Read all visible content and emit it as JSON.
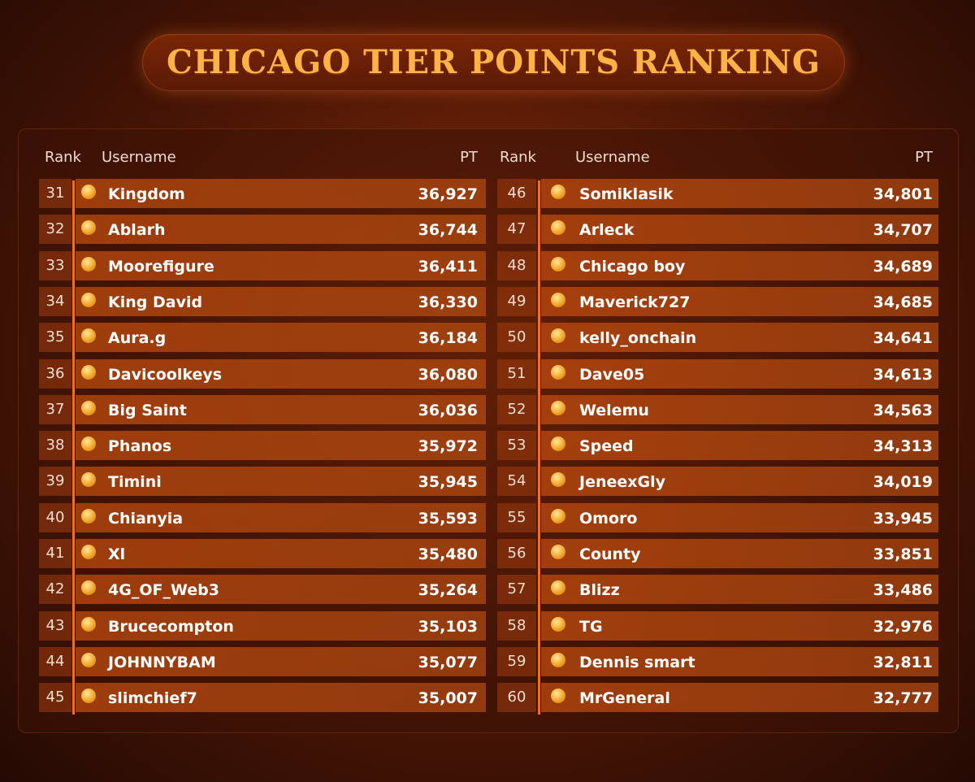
{
  "title": "CHICAGO TIER POINTS RANKING",
  "tables": [
    {
      "header": [
        "Rank",
        "Username",
        "PT"
      ],
      "rows": [
        [
          31,
          "Kingdom",
          "36,927"
        ],
        [
          32,
          "Ablarh",
          "36,744"
        ],
        [
          33,
          "Moorefigure",
          "36,411"
        ],
        [
          34,
          "King David",
          "36,330"
        ],
        [
          35,
          "Aura.g",
          "36,184"
        ],
        [
          36,
          "Davicoolkeys",
          "36,080"
        ],
        [
          37,
          "Big Saint",
          "36,036"
        ],
        [
          38,
          "Phanos",
          "35,972"
        ],
        [
          39,
          "Timini",
          "35,945"
        ],
        [
          40,
          "Chianyia",
          "35,593"
        ],
        [
          41,
          "Xl",
          "35,480"
        ],
        [
          42,
          "4G_OF_Web3",
          "35,264"
        ],
        [
          43,
          "Brucecompton",
          "35,103"
        ],
        [
          44,
          "JOHNNYBAM",
          "35,077"
        ],
        [
          45,
          "slimchief7",
          "35,007"
        ]
      ]
    },
    {
      "header": [
        "Rank",
        "Username",
        "PT"
      ],
      "rows": [
        [
          46,
          "Somiklasik",
          "34,801"
        ],
        [
          47,
          "Arleck",
          "34,707"
        ],
        [
          48,
          "Chicago boy",
          "34,689"
        ],
        [
          49,
          "Maverick727",
          "34,685"
        ],
        [
          50,
          "kelly_onchain",
          "34,641"
        ],
        [
          51,
          "Dave05",
          "34,613"
        ],
        [
          52,
          "Welemu",
          "34,563"
        ],
        [
          53,
          "Speed",
          "34,313"
        ],
        [
          54,
          "JeneexGly",
          "34,019"
        ],
        [
          55,
          "Omoro",
          "33,945"
        ],
        [
          56,
          "County",
          "33,851"
        ],
        [
          57,
          "Blizz",
          "33,486"
        ],
        [
          58,
          "TG",
          "32,976"
        ],
        [
          59,
          "Dennis smart",
          "32,811"
        ],
        [
          60,
          "MrGeneral",
          "32,777"
        ]
      ]
    }
  ]
}
